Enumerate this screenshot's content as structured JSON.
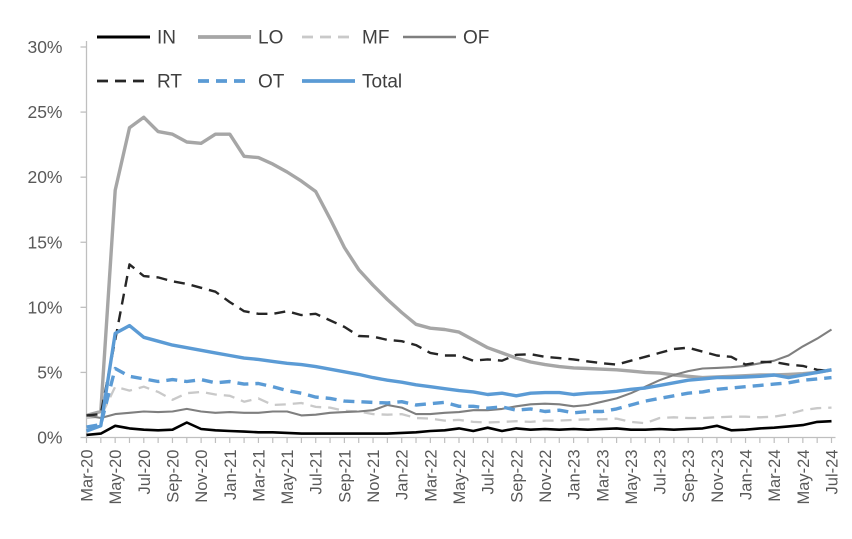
{
  "figure": {
    "background": "#ffffff",
    "axis_line_color": "#bfbfbf",
    "tick_color": "#bfbfbf",
    "axis_label_color": "#595959",
    "legend_text_color": "#404040"
  },
  "chart_data": {
    "type": "line",
    "title": "",
    "xlabel": "",
    "ylabel": "",
    "ylim": [
      0,
      30
    ],
    "y_tick_labels": [
      "0%",
      "5%",
      "10%",
      "15%",
      "20%",
      "25%",
      "30%"
    ],
    "y_tick_values": [
      0,
      5,
      10,
      15,
      20,
      25,
      30
    ],
    "grid": false,
    "legend_position": "top",
    "legend_rows": [
      [
        "IN",
        "LO",
        "MF",
        "OF"
      ],
      [
        "RT",
        "OT",
        "Total"
      ]
    ],
    "x_tick_label_every": 2,
    "x": [
      "Mar-20",
      "Apr-20",
      "May-20",
      "Jun-20",
      "Jul-20",
      "Aug-20",
      "Sep-20",
      "Oct-20",
      "Nov-20",
      "Dec-20",
      "Jan-21",
      "Feb-21",
      "Mar-21",
      "Apr-21",
      "May-21",
      "Jun-21",
      "Jul-21",
      "Aug-21",
      "Sep-21",
      "Oct-21",
      "Nov-21",
      "Dec-21",
      "Jan-22",
      "Feb-22",
      "Mar-22",
      "Apr-22",
      "May-22",
      "Jun-22",
      "Jul-22",
      "Aug-22",
      "Sep-22",
      "Oct-22",
      "Nov-22",
      "Dec-22",
      "Jan-23",
      "Feb-23",
      "Mar-23",
      "Apr-23",
      "May-23",
      "Jun-23",
      "Jul-23",
      "Aug-23",
      "Sep-23",
      "Oct-23",
      "Nov-23",
      "Dec-23",
      "Jan-24",
      "Feb-24",
      "Mar-24",
      "Apr-24",
      "May-24",
      "Jun-24",
      "Jul-24"
    ],
    "series": [
      {
        "name": "IN",
        "color": "#000000",
        "dash": "",
        "width": 2.6,
        "values": [
          0.2,
          0.3,
          0.9,
          0.7,
          0.6,
          0.55,
          0.6,
          1.15,
          0.65,
          0.55,
          0.5,
          0.45,
          0.4,
          0.4,
          0.35,
          0.3,
          0.3,
          0.3,
          0.3,
          0.3,
          0.3,
          0.3,
          0.35,
          0.4,
          0.5,
          0.55,
          0.7,
          0.5,
          0.75,
          0.5,
          0.7,
          0.6,
          0.65,
          0.6,
          0.65,
          0.6,
          0.65,
          0.7,
          0.6,
          0.6,
          0.65,
          0.6,
          0.65,
          0.7,
          0.9,
          0.55,
          0.6,
          0.7,
          0.75,
          0.85,
          0.95,
          1.2,
          1.25
        ]
      },
      {
        "name": "LO",
        "color": "#a6a6a6",
        "dash": "",
        "width": 3.4,
        "values": [
          1.7,
          2.0,
          19.0,
          23.8,
          24.6,
          23.5,
          23.3,
          22.7,
          22.6,
          23.3,
          23.3,
          21.6,
          21.5,
          21.0,
          20.4,
          19.7,
          18.9,
          16.8,
          14.6,
          12.9,
          11.7,
          10.6,
          9.6,
          8.7,
          8.4,
          8.3,
          8.1,
          7.5,
          6.9,
          6.5,
          6.1,
          5.8,
          5.6,
          5.45,
          5.35,
          5.3,
          5.25,
          5.2,
          5.1,
          5.0,
          4.95,
          4.8,
          4.7,
          4.6,
          4.65,
          4.7,
          4.75,
          4.8,
          4.8,
          4.85,
          4.9,
          5.0,
          5.2
        ]
      },
      {
        "name": "MF",
        "color": "#c9c9c9",
        "dash": "11 7",
        "width": 2.3,
        "values": [
          1.5,
          1.6,
          3.9,
          3.6,
          3.9,
          3.5,
          2.9,
          3.4,
          3.5,
          3.3,
          3.2,
          2.75,
          3.0,
          2.5,
          2.55,
          2.65,
          2.35,
          2.3,
          2.05,
          2.0,
          1.8,
          1.75,
          1.8,
          1.5,
          1.45,
          1.3,
          1.35,
          1.2,
          1.15,
          1.2,
          1.25,
          1.2,
          1.3,
          1.3,
          1.35,
          1.4,
          1.4,
          1.45,
          1.2,
          1.1,
          1.5,
          1.55,
          1.5,
          1.5,
          1.55,
          1.6,
          1.6,
          1.55,
          1.6,
          1.8,
          2.1,
          2.25,
          2.3
        ]
      },
      {
        "name": "OF",
        "color": "#7f7f7f",
        "dash": "",
        "width": 2.1,
        "values": [
          1.7,
          1.5,
          1.8,
          1.9,
          2.0,
          1.95,
          2.0,
          2.2,
          2.0,
          1.9,
          1.95,
          1.9,
          1.9,
          2.0,
          2.0,
          1.7,
          1.75,
          1.9,
          1.95,
          2.0,
          2.1,
          2.5,
          2.3,
          1.8,
          1.8,
          1.9,
          1.95,
          2.1,
          2.1,
          2.2,
          2.4,
          2.55,
          2.6,
          2.55,
          2.4,
          2.5,
          2.75,
          3.0,
          3.4,
          3.9,
          4.4,
          4.8,
          5.1,
          5.3,
          5.35,
          5.4,
          5.5,
          5.7,
          5.9,
          6.3,
          7.0,
          7.6,
          8.3
        ]
      },
      {
        "name": "RT",
        "color": "#262626",
        "dash": "11 7",
        "width": 2.4,
        "values": [
          1.7,
          1.8,
          7.5,
          13.3,
          12.4,
          12.3,
          12.0,
          11.8,
          11.5,
          11.2,
          10.4,
          9.7,
          9.5,
          9.5,
          9.7,
          9.4,
          9.5,
          9.0,
          8.5,
          7.8,
          7.75,
          7.5,
          7.4,
          7.1,
          6.5,
          6.3,
          6.3,
          5.9,
          6.0,
          5.9,
          6.35,
          6.4,
          6.2,
          6.1,
          6.0,
          5.85,
          5.7,
          5.6,
          5.9,
          6.2,
          6.5,
          6.8,
          6.9,
          6.6,
          6.3,
          6.2,
          5.6,
          5.8,
          5.8,
          5.6,
          5.5,
          5.2,
          5.1
        ]
      },
      {
        "name": "OT",
        "color": "#5b9bd5",
        "dash": "11 7",
        "width": 3.4,
        "values": [
          0.8,
          1.0,
          5.3,
          4.7,
          4.5,
          4.3,
          4.45,
          4.3,
          4.45,
          4.2,
          4.3,
          4.1,
          4.15,
          3.9,
          3.6,
          3.4,
          3.1,
          3.0,
          2.8,
          2.75,
          2.7,
          2.65,
          2.75,
          2.5,
          2.6,
          2.7,
          2.4,
          2.4,
          2.25,
          2.35,
          2.1,
          2.2,
          2.0,
          2.1,
          1.9,
          2.0,
          2.0,
          2.2,
          2.5,
          2.8,
          3.0,
          3.2,
          3.4,
          3.5,
          3.7,
          3.8,
          3.9,
          4.0,
          4.1,
          4.2,
          4.4,
          4.5,
          4.6
        ]
      },
      {
        "name": "Total",
        "color": "#5b9bd5",
        "dash": "",
        "width": 3.4,
        "values": [
          0.5,
          0.9,
          8.0,
          8.6,
          7.7,
          7.4,
          7.1,
          6.9,
          6.7,
          6.5,
          6.3,
          6.1,
          6.0,
          5.85,
          5.7,
          5.6,
          5.45,
          5.25,
          5.05,
          4.85,
          4.6,
          4.4,
          4.25,
          4.05,
          3.9,
          3.75,
          3.6,
          3.5,
          3.3,
          3.4,
          3.2,
          3.4,
          3.45,
          3.45,
          3.3,
          3.4,
          3.45,
          3.55,
          3.7,
          3.8,
          4.0,
          4.2,
          4.4,
          4.5,
          4.6,
          4.6,
          4.65,
          4.7,
          4.8,
          4.6,
          4.8,
          5.0,
          5.2
        ]
      }
    ]
  }
}
